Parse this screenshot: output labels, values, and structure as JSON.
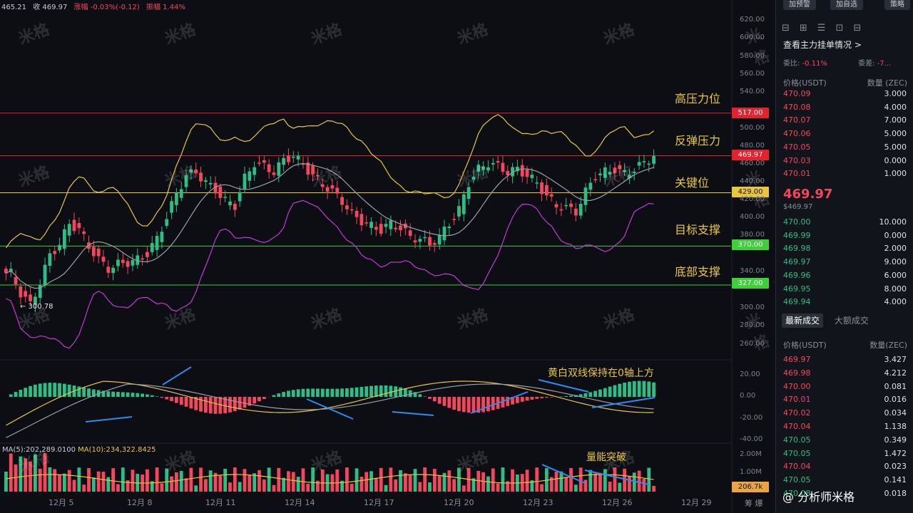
{
  "header_info": {
    "open": "465.21",
    "close_label": "收 469.97",
    "change_label": "涨幅 -0.03%(-0.12)",
    "amplitude_label": "振幅 1.44%"
  },
  "watermark": "米格",
  "levels": [
    {
      "name": "高压力位",
      "price": "517.00",
      "color": "#e5212f"
    },
    {
      "name": "反弹压力",
      "price": "469.97",
      "color": "#e5212f"
    },
    {
      "name": "关键位",
      "price": "429.00",
      "color": "#e9c640"
    },
    {
      "name": "目标支撑",
      "price": "370.00",
      "color": "#3fcf3a"
    },
    {
      "name": "底部支撑",
      "price": "327.00",
      "color": "#3fcf3a"
    }
  ],
  "price_axis": [
    "620.00",
    "600.00",
    "580.00",
    "560.00",
    "540.00",
    "520.00",
    "500.00",
    "480.00",
    "460.00",
    "440.00",
    "420.00",
    "400.00",
    "380.00",
    "360.00",
    "340.00",
    "320.00",
    "300.00",
    "280.00",
    "260.00"
  ],
  "macd_axis": [
    "20.00",
    "0.00",
    "-20.00",
    "-40.00"
  ],
  "vol_axis": [
    "2.00M",
    "1.00M"
  ],
  "vol_tag": "206.7k",
  "low_marker": "← 300.78",
  "annotations": {
    "macd": "黄白双线保持在0轴上方",
    "volume": "量能突破"
  },
  "volume_legend": {
    "ma5": "MA(5):202,289.0100",
    "ma10": "MA(10):234,322.8425"
  },
  "dates": [
    "12月 5",
    "12月 8",
    "12月 11",
    "12月 14",
    "12月 17",
    "12月 20",
    "12月 23",
    "12月 26",
    "12月 29"
  ],
  "bottom_right": "筹 爆",
  "panel": {
    "buttons": [
      "加预警",
      "加自选",
      "策略"
    ],
    "title": "查看主力挂单情况 >",
    "ratio": {
      "label1": "委比:",
      "value1": "-0.11%",
      "label2": "委差:",
      "value2": "-7..."
    },
    "ob_header": {
      "price": "价格(USDT)",
      "qty": "数量 (ZEC)"
    },
    "asks": [
      {
        "p": "470.09",
        "q": "3.000"
      },
      {
        "p": "470.08",
        "q": "4.000"
      },
      {
        "p": "470.07",
        "q": "7.000"
      },
      {
        "p": "470.06",
        "q": "5.000"
      },
      {
        "p": "470.05",
        "q": "5.000"
      },
      {
        "p": "470.03",
        "q": "0.000"
      },
      {
        "p": "470.01",
        "q": "1.000"
      }
    ],
    "last_price": "469.97",
    "last_sub": "$469.97",
    "bids": [
      {
        "p": "470.00",
        "q": "10.000"
      },
      {
        "p": "469.99",
        "q": "0.000"
      },
      {
        "p": "469.98",
        "q": "2.000"
      },
      {
        "p": "469.97",
        "q": "9.000"
      },
      {
        "p": "469.96",
        "q": "6.000"
      },
      {
        "p": "469.95",
        "q": "8.000"
      },
      {
        "p": "469.94",
        "q": "4.000"
      }
    ],
    "trade_tabs": {
      "active": "最新成交",
      "inactive": "大额成交"
    },
    "trades_header": {
      "price": "价格(USDT)",
      "qty": "数量(ZEC)"
    },
    "trades": [
      {
        "p": "469.97",
        "q": "3.427",
        "c": "red"
      },
      {
        "p": "469.98",
        "q": "4.212",
        "c": "red"
      },
      {
        "p": "470.00",
        "q": "0.081",
        "c": "red"
      },
      {
        "p": "470.01",
        "q": "0.016",
        "c": "red"
      },
      {
        "p": "470.02",
        "q": "0.034",
        "c": "red"
      },
      {
        "p": "470.04",
        "q": "1.138",
        "c": "red"
      },
      {
        "p": "470.05",
        "q": "0.349",
        "c": "green"
      },
      {
        "p": "470.05",
        "q": "1.472",
        "c": "green"
      },
      {
        "p": "470.04",
        "q": "0.023",
        "c": "red"
      },
      {
        "p": "470.05",
        "q": "0.141",
        "c": "green"
      },
      {
        "p": "470.08",
        "q": "0.018",
        "c": "green"
      }
    ],
    "weibo": "@ 分析师米格"
  },
  "chart_data": {
    "type": "candlestick",
    "symbol": "ZEC/USDT",
    "current_price": 469.97,
    "period_low": 300.78,
    "horizontal_levels": [
      517,
      469.97,
      429,
      370,
      327
    ],
    "ylim": [
      260,
      620
    ],
    "x_labels": [
      "12月 5",
      "12月 8",
      "12月 11",
      "12月 14",
      "12月 17",
      "12月 20",
      "12月 23",
      "12月 26",
      "12月 29"
    ],
    "close_series": [
      340,
      318,
      305,
      330,
      360,
      372,
      395,
      388,
      370,
      355,
      345,
      350,
      352,
      355,
      362,
      378,
      402,
      428,
      448,
      452,
      440,
      432,
      420,
      415,
      445,
      462,
      458,
      452,
      465,
      470,
      460,
      448,
      438,
      430,
      420,
      405,
      398,
      392,
      388,
      395,
      390,
      380,
      378,
      372,
      380,
      395,
      410,
      440,
      455,
      462,
      458,
      452,
      455,
      448,
      440,
      425,
      415,
      412,
      408,
      430,
      448,
      452,
      455,
      450,
      455,
      462,
      470
    ]
  }
}
